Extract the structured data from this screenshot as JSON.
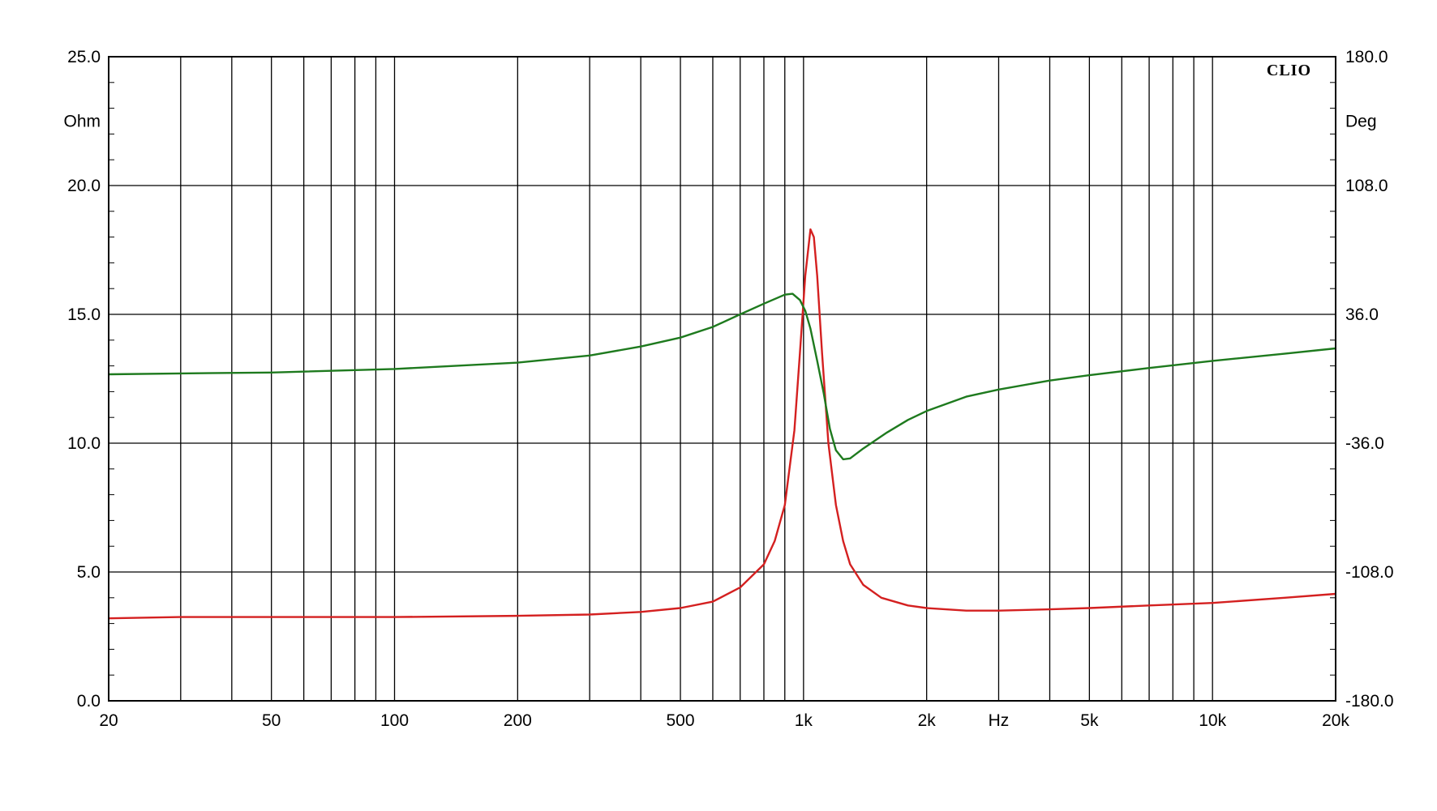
{
  "brand": "CLIO",
  "chart_data": {
    "type": "line",
    "xscale": "log",
    "xlim": [
      20,
      20000
    ],
    "xlabel": "Hz",
    "x_ticks": [
      {
        "value": 20,
        "label": "20"
      },
      {
        "value": 50,
        "label": "50"
      },
      {
        "value": 100,
        "label": "100"
      },
      {
        "value": 200,
        "label": "200"
      },
      {
        "value": 500,
        "label": "500"
      },
      {
        "value": 1000,
        "label": "1k"
      },
      {
        "value": 2000,
        "label": "2k"
      },
      {
        "value": 5000,
        "label": "5k"
      },
      {
        "value": 10000,
        "label": "10k"
      },
      {
        "value": 20000,
        "label": "20k"
      }
    ],
    "x_unit_position": 3000,
    "y_left": {
      "unit": "Ohm",
      "lim": [
        0,
        25
      ],
      "ticks": [
        {
          "value": 0,
          "label": "0.0"
        },
        {
          "value": 5,
          "label": "5.0"
        },
        {
          "value": 10,
          "label": "10.0"
        },
        {
          "value": 15,
          "label": "15.0"
        },
        {
          "value": 20,
          "label": "20.0"
        },
        {
          "value": 25,
          "label": "25.0"
        }
      ]
    },
    "y_right": {
      "unit": "Deg",
      "lim": [
        -180,
        180
      ],
      "ticks": [
        {
          "value": -180,
          "label": "-180.0"
        },
        {
          "value": -108,
          "label": "-108.0"
        },
        {
          "value": -36,
          "label": "-36.0"
        },
        {
          "value": 36,
          "label": "36.0"
        },
        {
          "value": 108,
          "label": "108.0"
        },
        {
          "value": 180,
          "label": "180.0"
        }
      ]
    },
    "grid": true,
    "series": [
      {
        "axis": "left",
        "color": "#d42020",
        "points": [
          [
            20,
            3.2
          ],
          [
            30,
            3.25
          ],
          [
            50,
            3.25
          ],
          [
            100,
            3.25
          ],
          [
            200,
            3.3
          ],
          [
            300,
            3.35
          ],
          [
            400,
            3.45
          ],
          [
            500,
            3.6
          ],
          [
            600,
            3.85
          ],
          [
            700,
            4.4
          ],
          [
            800,
            5.3
          ],
          [
            850,
            6.2
          ],
          [
            900,
            7.6
          ],
          [
            950,
            10.5
          ],
          [
            980,
            13.5
          ],
          [
            1010,
            16.5
          ],
          [
            1040,
            18.3
          ],
          [
            1060,
            18.0
          ],
          [
            1080,
            16.5
          ],
          [
            1110,
            13.5
          ],
          [
            1150,
            10.0
          ],
          [
            1200,
            7.6
          ],
          [
            1250,
            6.2
          ],
          [
            1300,
            5.3
          ],
          [
            1400,
            4.5
          ],
          [
            1550,
            4.0
          ],
          [
            1800,
            3.7
          ],
          [
            2000,
            3.6
          ],
          [
            2500,
            3.5
          ],
          [
            3000,
            3.5
          ],
          [
            4000,
            3.55
          ],
          [
            5000,
            3.6
          ],
          [
            7000,
            3.7
          ],
          [
            10000,
            3.8
          ],
          [
            15000,
            4.0
          ],
          [
            20000,
            4.15
          ]
        ]
      },
      {
        "axis": "right",
        "color": "#1e7a1e",
        "points": [
          [
            20,
            2.5
          ],
          [
            30,
            3.0
          ],
          [
            50,
            3.5
          ],
          [
            100,
            5.5
          ],
          [
            200,
            9.0
          ],
          [
            300,
            13.0
          ],
          [
            400,
            18.0
          ],
          [
            500,
            23.0
          ],
          [
            600,
            29.0
          ],
          [
            700,
            36.0
          ],
          [
            800,
            42.0
          ],
          [
            900,
            47.0
          ],
          [
            940,
            47.5
          ],
          [
            980,
            44.0
          ],
          [
            1010,
            38.0
          ],
          [
            1040,
            28.0
          ],
          [
            1080,
            10.0
          ],
          [
            1120,
            -8.0
          ],
          [
            1160,
            -28.0
          ],
          [
            1200,
            -40.0
          ],
          [
            1250,
            -45.0
          ],
          [
            1300,
            -44.5
          ],
          [
            1400,
            -39.0
          ],
          [
            1600,
            -30.0
          ],
          [
            1800,
            -23.0
          ],
          [
            2000,
            -18.0
          ],
          [
            2500,
            -10.0
          ],
          [
            3000,
            -6.0
          ],
          [
            4000,
            -1.0
          ],
          [
            5000,
            2.0
          ],
          [
            7000,
            6.0
          ],
          [
            10000,
            10.0
          ],
          [
            15000,
            14.0
          ],
          [
            20000,
            17.0
          ]
        ]
      }
    ]
  }
}
